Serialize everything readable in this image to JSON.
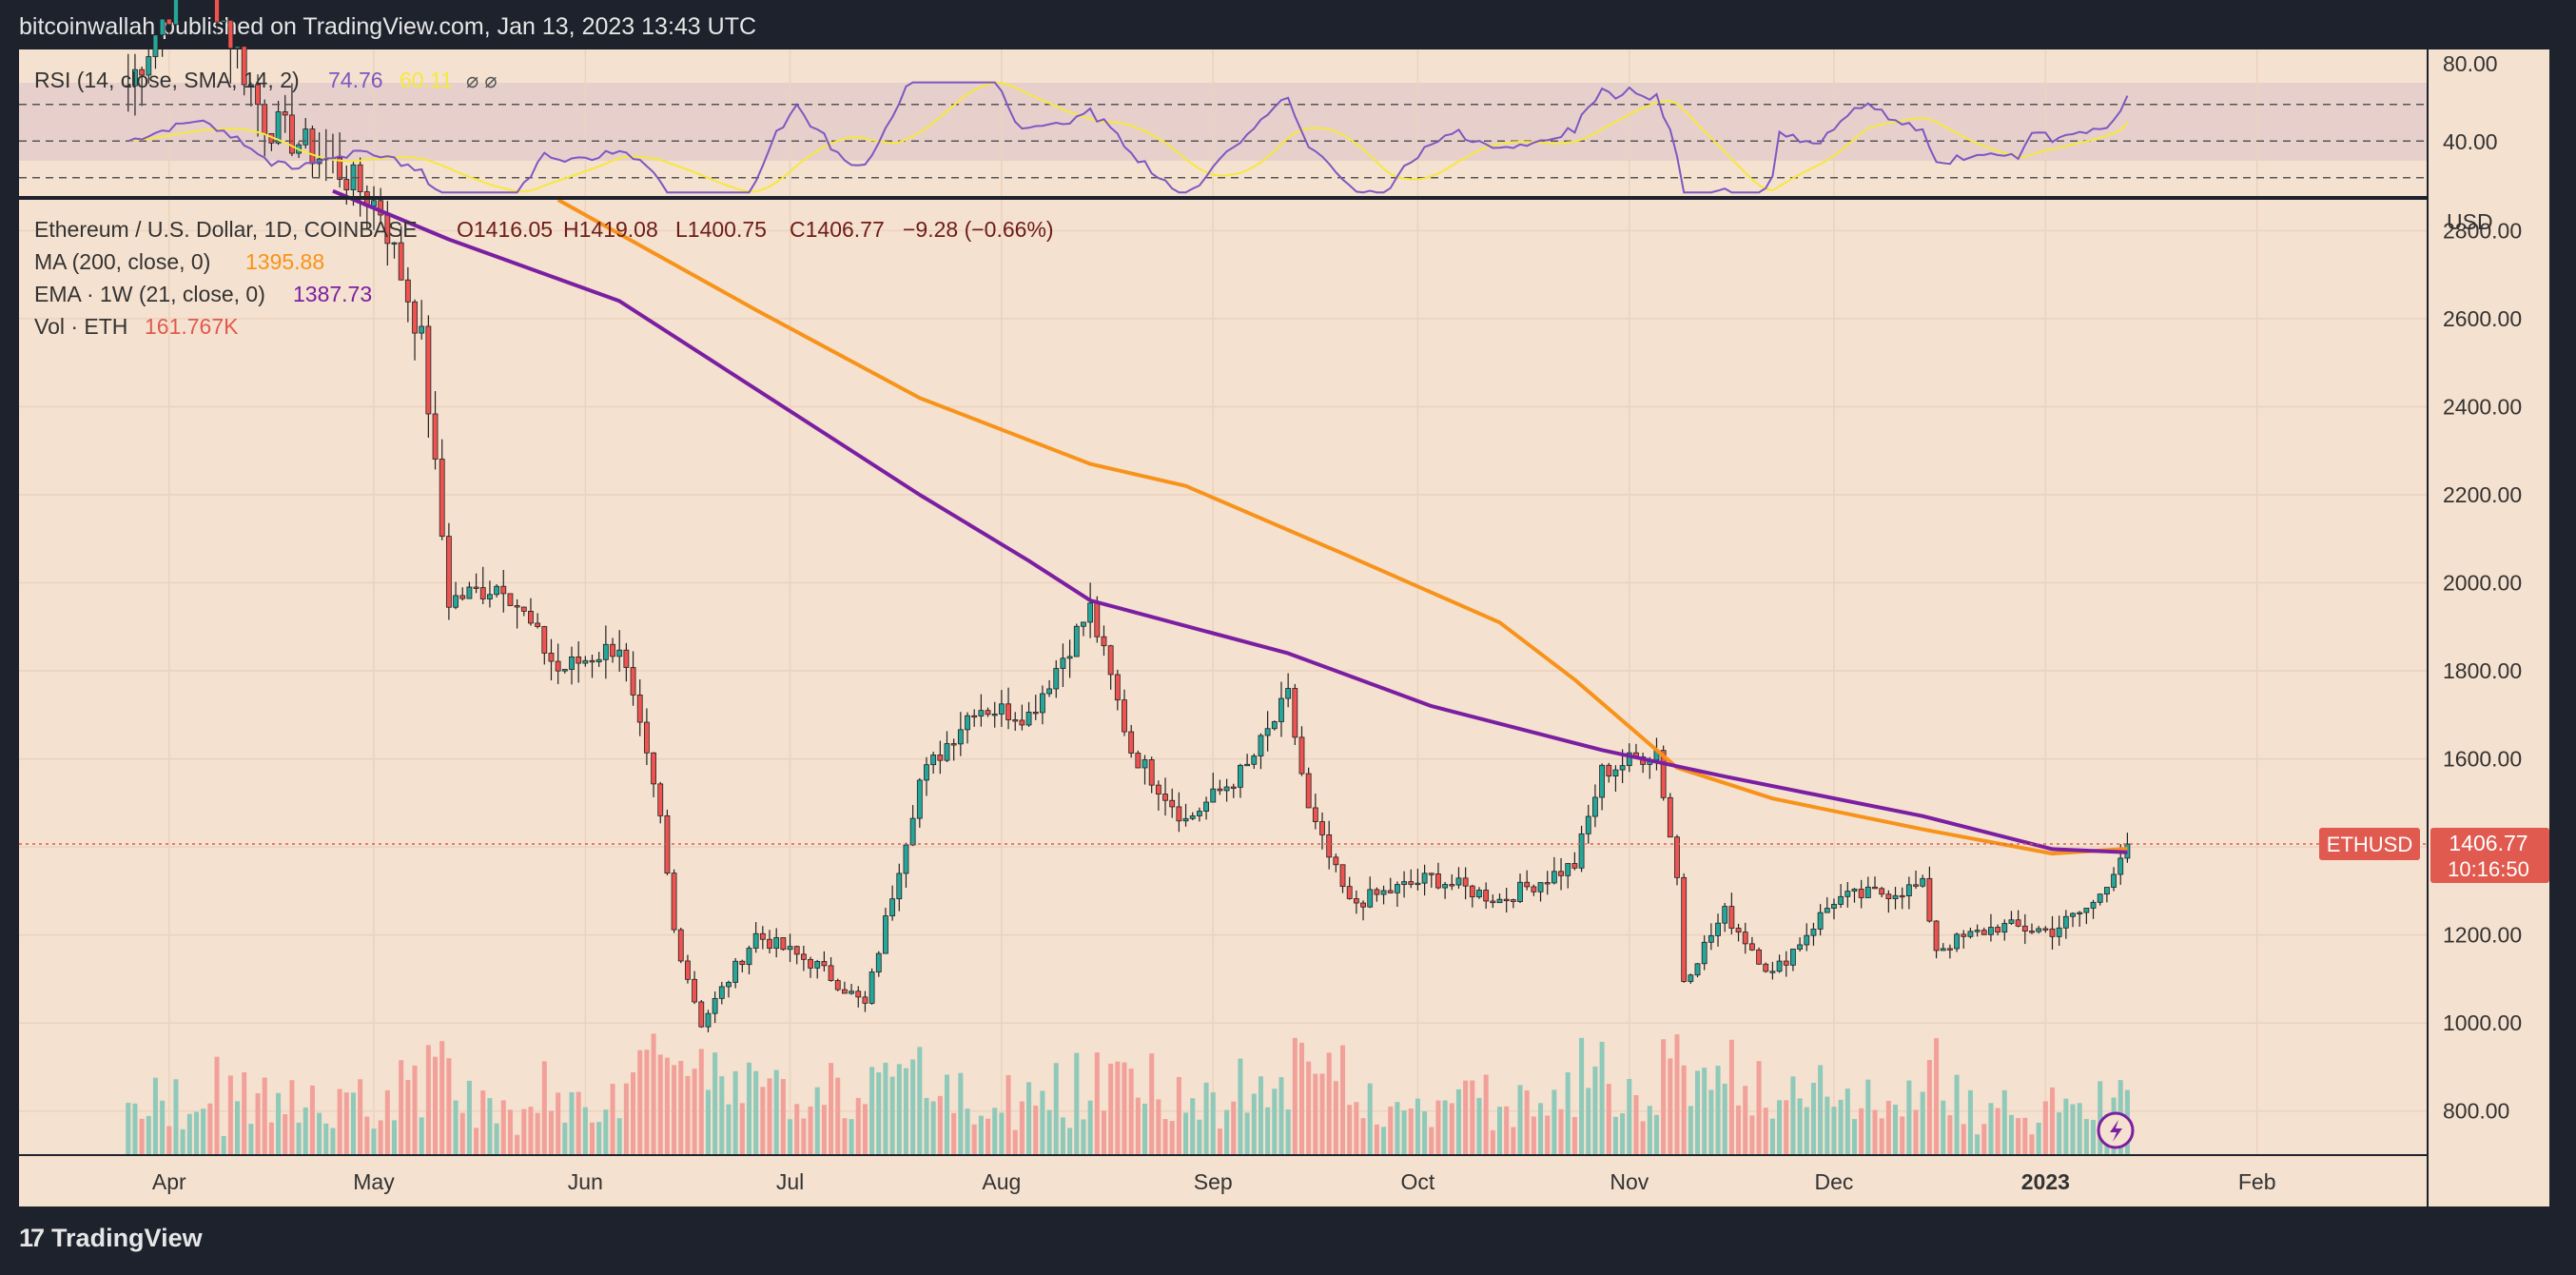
{
  "header": {
    "published": "bitcoinwallah published on TradingView.com, Jan 13, 2023 13:43 UTC"
  },
  "footer": {
    "brand": "TradingView"
  },
  "rsi_panel": {
    "label": "RSI (14, close, SMA, 14, 2)",
    "value": "74.76",
    "sma_value": "60.11",
    "ticks": [
      "80.00",
      "40.00"
    ]
  },
  "legend": {
    "symbol_line": "Ethereum / U.S. Dollar, 1D, COINBASE",
    "ohlc": {
      "o": "O1416.05",
      "h": "H1419.08",
      "l": "L1400.75",
      "c": "C1406.77",
      "chg": "−9.28 (−0.66%)"
    },
    "ma": {
      "label": "MA (200, close, 0)",
      "value": "1395.88"
    },
    "ema": {
      "label": "EMA · 1W (21, close, 0)",
      "value": "1387.73"
    },
    "vol": {
      "label": "Vol · ETH",
      "value": "161.767K"
    }
  },
  "price_axis": {
    "currency": "USD",
    "badge_symbol": "ETHUSD",
    "badge_price": "1406.77",
    "badge_countdown": "10:16:50"
  },
  "chart_data": {
    "type": "candlestick",
    "symbol": "ETHUSD",
    "x_tick_labels": [
      "Apr",
      "May",
      "Jun",
      "Jul",
      "Aug",
      "Sep",
      "Oct",
      "Nov",
      "Dec",
      "2023",
      "Feb"
    ],
    "y_tick_labels": [
      "2800.00",
      "2600.00",
      "2400.00",
      "2200.00",
      "2000.00",
      "1800.00",
      "1600.00",
      "1400.00",
      "1200.00",
      "1000.00",
      "800.00"
    ],
    "ylim": [
      700,
      2870
    ],
    "last_price": 1406.77,
    "series_close": [
      {
        "date": "2022-03-26",
        "close": 3130
      },
      {
        "date": "2022-04-05",
        "close": 3430
      },
      {
        "date": "2022-04-15",
        "close": 3050
      },
      {
        "date": "2022-04-25",
        "close": 2950
      },
      {
        "date": "2022-05-02",
        "close": 2850
      },
      {
        "date": "2022-05-08",
        "close": 2550
      },
      {
        "date": "2022-05-12",
        "close": 1960
      },
      {
        "date": "2022-05-20",
        "close": 2000
      },
      {
        "date": "2022-05-28",
        "close": 1800
      },
      {
        "date": "2022-06-06",
        "close": 1860
      },
      {
        "date": "2022-06-12",
        "close": 1460
      },
      {
        "date": "2022-06-14",
        "close": 1210
      },
      {
        "date": "2022-06-18",
        "close": 1000
      },
      {
        "date": "2022-06-26",
        "close": 1200
      },
      {
        "date": "2022-07-05",
        "close": 1130
      },
      {
        "date": "2022-07-12",
        "close": 1040
      },
      {
        "date": "2022-07-20",
        "close": 1550
      },
      {
        "date": "2022-07-28",
        "close": 1720
      },
      {
        "date": "2022-08-05",
        "close": 1700
      },
      {
        "date": "2022-08-14",
        "close": 1940
      },
      {
        "date": "2022-08-20",
        "close": 1620
      },
      {
        "date": "2022-08-28",
        "close": 1460
      },
      {
        "date": "2022-09-06",
        "close": 1580
      },
      {
        "date": "2022-09-12",
        "close": 1740
      },
      {
        "date": "2022-09-15",
        "close": 1480
      },
      {
        "date": "2022-09-21",
        "close": 1270
      },
      {
        "date": "2022-10-03",
        "close": 1330
      },
      {
        "date": "2022-10-13",
        "close": 1280
      },
      {
        "date": "2022-10-24",
        "close": 1360
      },
      {
        "date": "2022-10-28",
        "close": 1570
      },
      {
        "date": "2022-11-05",
        "close": 1620
      },
      {
        "date": "2022-11-08",
        "close": 1330
      },
      {
        "date": "2022-11-09",
        "close": 1100
      },
      {
        "date": "2022-11-15",
        "close": 1250
      },
      {
        "date": "2022-11-22",
        "close": 1110
      },
      {
        "date": "2022-12-01",
        "close": 1280
      },
      {
        "date": "2022-12-14",
        "close": 1310
      },
      {
        "date": "2022-12-16",
        "close": 1170
      },
      {
        "date": "2022-12-25",
        "close": 1220
      },
      {
        "date": "2023-01-02",
        "close": 1210
      },
      {
        "date": "2023-01-08",
        "close": 1270
      },
      {
        "date": "2023-01-13",
        "close": 1407
      }
    ],
    "series": [
      {
        "name": "MA (200, close, 0)",
        "color": "#f7931a",
        "points": [
          {
            "date": "2022-05-28",
            "value": 2870
          },
          {
            "date": "2022-06-26",
            "value": 2620
          },
          {
            "date": "2022-07-20",
            "value": 2420
          },
          {
            "date": "2022-08-14",
            "value": 2270
          },
          {
            "date": "2022-08-28",
            "value": 2220
          },
          {
            "date": "2022-09-21",
            "value": 2060
          },
          {
            "date": "2022-10-13",
            "value": 1910
          },
          {
            "date": "2022-10-24",
            "value": 1780
          },
          {
            "date": "2022-11-08",
            "value": 1580
          },
          {
            "date": "2022-11-22",
            "value": 1510
          },
          {
            "date": "2022-12-14",
            "value": 1440
          },
          {
            "date": "2023-01-02",
            "value": 1385
          },
          {
            "date": "2023-01-13",
            "value": 1396
          }
        ]
      },
      {
        "name": "EMA · 1W (21, close, 0)",
        "color": "#7b1fa2",
        "points": [
          {
            "date": "2022-04-25",
            "value": 2890
          },
          {
            "date": "2022-05-12",
            "value": 2780
          },
          {
            "date": "2022-06-06",
            "value": 2640
          },
          {
            "date": "2022-06-26",
            "value": 2440
          },
          {
            "date": "2022-07-20",
            "value": 2200
          },
          {
            "date": "2022-08-05",
            "value": 2050
          },
          {
            "date": "2022-08-14",
            "value": 1960
          },
          {
            "date": "2022-09-12",
            "value": 1840
          },
          {
            "date": "2022-10-03",
            "value": 1720
          },
          {
            "date": "2022-10-28",
            "value": 1620
          },
          {
            "date": "2022-11-15",
            "value": 1560
          },
          {
            "date": "2022-12-14",
            "value": 1470
          },
          {
            "date": "2023-01-02",
            "value": 1395
          },
          {
            "date": "2023-01-13",
            "value": 1388
          }
        ]
      }
    ],
    "rsi": {
      "ylim": [
        20,
        100
      ],
      "levels": [
        70,
        50,
        30
      ],
      "last": 74.76,
      "sma_last": 60.11
    }
  },
  "colors": {
    "background": "#f5e1cf",
    "frame": "#1e222d",
    "up": "#26a69a",
    "down": "#ef5350",
    "ma": "#f7931a",
    "ema": "#7b1fa2",
    "rsi_line": "#7e57c2",
    "rsi_sma": "#f5e83e",
    "badge": "#e05a4f"
  }
}
